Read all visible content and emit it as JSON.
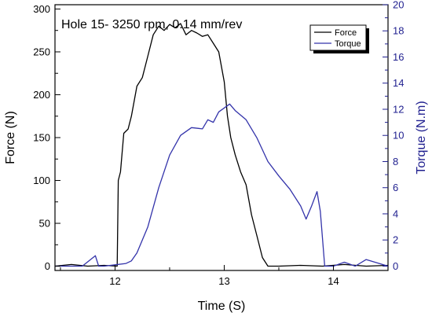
{
  "chart_data": {
    "type": "line",
    "title": "Hole 15- 3250 rpm, 0.14 mm/rev",
    "xlabel": "Time (S)",
    "ylabel": "Force (N)",
    "y2label": "Torque (N.m)",
    "xlim": [
      11.45,
      14.5
    ],
    "ylim": [
      -5,
      305
    ],
    "y2lim": [
      -0.3333,
      20
    ],
    "xticks": [
      12,
      13,
      14
    ],
    "yticks": [
      0,
      50,
      100,
      150,
      200,
      250,
      300
    ],
    "y2ticks": [
      0,
      2,
      4,
      6,
      8,
      10,
      12,
      14,
      16,
      18,
      20
    ],
    "grid": false,
    "legend_position": "top-right",
    "colors": {
      "force": "#000000",
      "torque": "#3333aa",
      "axis_right": "#1f1f8f"
    },
    "series": [
      {
        "name": "Force",
        "axis": "left",
        "x": [
          11.45,
          11.6,
          11.75,
          11.9,
          12.02,
          12.03,
          12.05,
          12.08,
          12.12,
          12.15,
          12.2,
          12.25,
          12.3,
          12.35,
          12.4,
          12.45,
          12.5,
          12.55,
          12.6,
          12.65,
          12.7,
          12.75,
          12.8,
          12.85,
          12.9,
          12.95,
          13.0,
          13.03,
          13.06,
          13.1,
          13.15,
          13.2,
          13.25,
          13.3,
          13.35,
          13.4,
          13.5,
          13.7,
          13.9,
          14.1,
          14.3,
          14.5
        ],
        "y": [
          0,
          2,
          0,
          1,
          0,
          100,
          110,
          155,
          160,
          175,
          210,
          220,
          245,
          270,
          280,
          275,
          282,
          278,
          283,
          270,
          275,
          272,
          268,
          270,
          260,
          250,
          215,
          175,
          150,
          130,
          110,
          95,
          60,
          35,
          10,
          0,
          0,
          1,
          0,
          2,
          0,
          1
        ]
      },
      {
        "name": "Torque",
        "axis": "right",
        "x": [
          11.45,
          11.7,
          11.82,
          11.85,
          11.9,
          12.0,
          12.1,
          12.15,
          12.2,
          12.3,
          12.4,
          12.5,
          12.6,
          12.7,
          12.8,
          12.85,
          12.9,
          12.95,
          13.0,
          13.05,
          13.1,
          13.2,
          13.3,
          13.4,
          13.5,
          13.6,
          13.7,
          13.75,
          13.8,
          13.85,
          13.88,
          13.92,
          14.0,
          14.1,
          14.2,
          14.3,
          14.5
        ],
        "y": [
          0,
          0,
          0.8,
          0,
          0,
          0.1,
          0.2,
          0.4,
          1.0,
          3.0,
          6.0,
          8.5,
          10.0,
          10.6,
          10.5,
          11.2,
          11.0,
          11.8,
          12.1,
          12.4,
          11.9,
          11.2,
          9.8,
          8.0,
          6.9,
          5.9,
          4.6,
          3.6,
          4.6,
          5.7,
          4.2,
          0,
          0,
          0.3,
          0,
          0.5,
          0
        ]
      }
    ]
  }
}
